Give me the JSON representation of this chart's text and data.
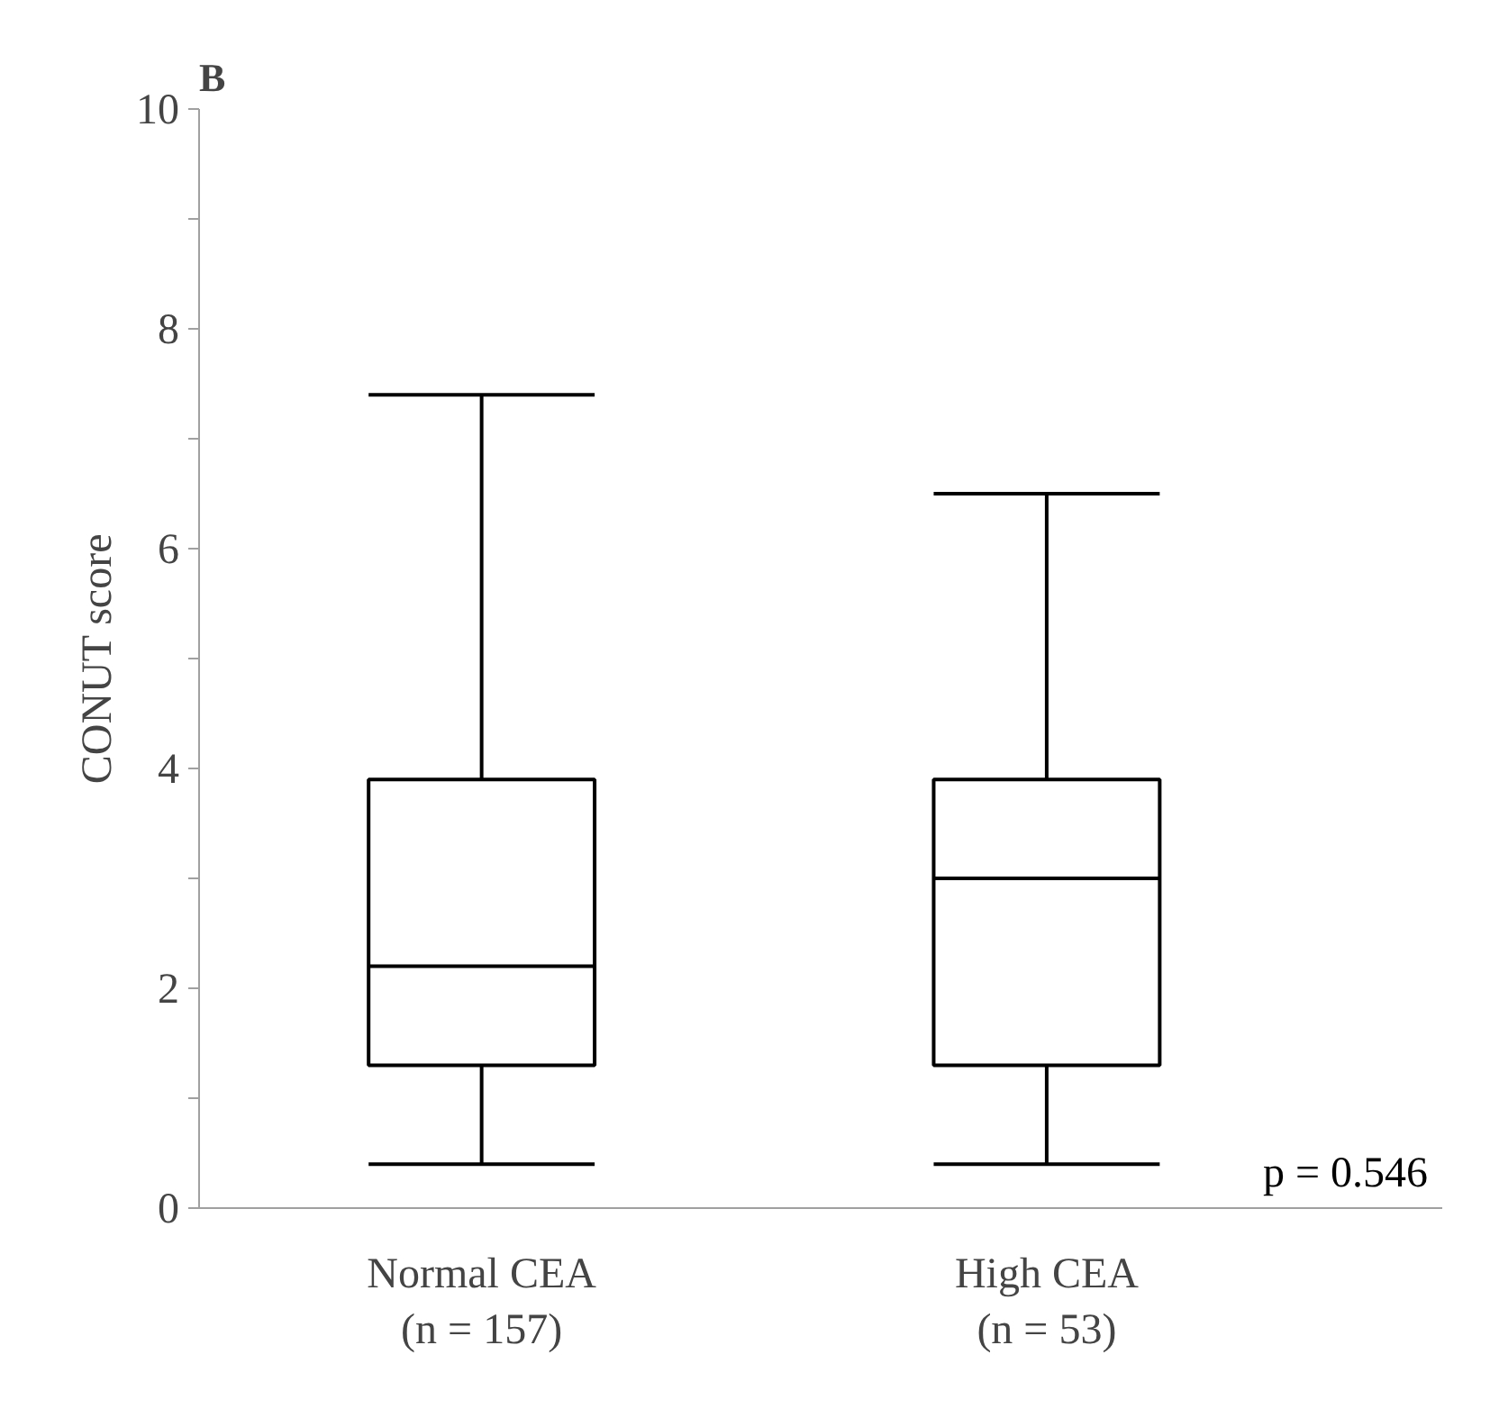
{
  "chart_data": {
    "type": "box",
    "title": "B",
    "ylabel": "CONUT score",
    "categories": [
      "Normal CEA\n(n = 157)",
      "High CEA\n(n = 53)"
    ],
    "boxes": [
      {
        "low": 0.4,
        "q1": 1.3,
        "median": 2.2,
        "q3": 3.9,
        "high": 7.4
      },
      {
        "low": 0.4,
        "q1": 1.3,
        "median": 3.0,
        "q3": 3.9,
        "high": 6.5
      }
    ],
    "color": "#000000",
    "ylim": [
      0,
      10
    ],
    "yticks": [
      0,
      {
        "value": 1,
        "label": null
      },
      2,
      {
        "value": 3,
        "label": null
      },
      4,
      {
        "value": 5,
        "label": null
      },
      6,
      {
        "value": 7,
        "label": null
      },
      8,
      {
        "value": 9,
        "label": null
      },
      10
    ],
    "grid": false,
    "annotations": [
      "p = 0.546"
    ]
  }
}
